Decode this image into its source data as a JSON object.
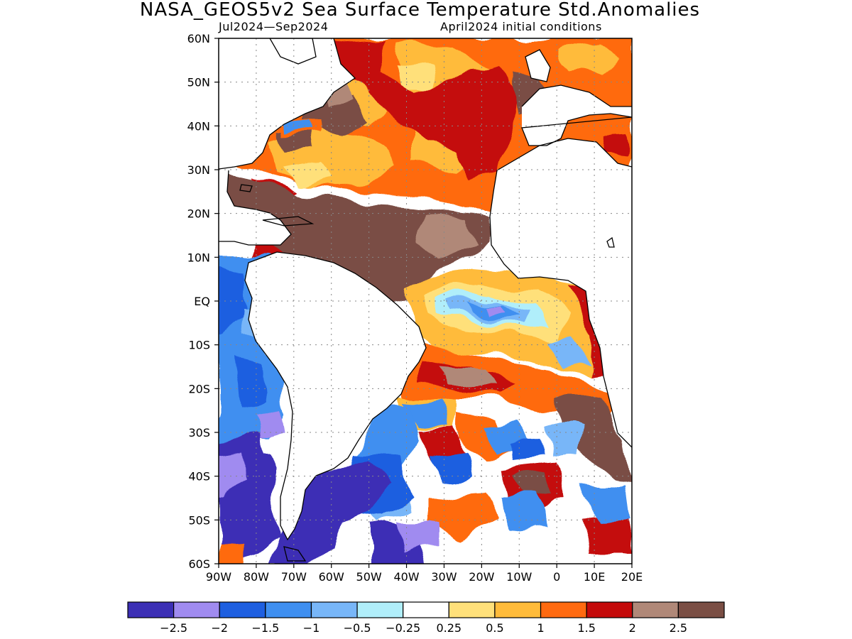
{
  "title": "NASA_GEOS5v2 Sea Surface Temperature Std.Anomalies",
  "subtitle_left": "Jul2024—Sep2024",
  "subtitle_right": "April2024 initial conditions",
  "map": {
    "projection": "lat-lon",
    "lon_range": [
      -90,
      20
    ],
    "lat_range": [
      -60,
      60
    ],
    "gridlines": "dotted",
    "lat_ticks": [
      "60N",
      "50N",
      "40N",
      "30N",
      "20N",
      "10N",
      "EQ",
      "10S",
      "20S",
      "30S",
      "40S",
      "50S",
      "60S"
    ],
    "lon_ticks": [
      "90W",
      "80W",
      "70W",
      "60W",
      "50W",
      "40W",
      "30W",
      "20W",
      "10W",
      "0",
      "10E",
      "20E"
    ],
    "variable": "SST standardized anomaly"
  },
  "colorbar": {
    "colors": [
      "#3c2fb5",
      "#a08bf0",
      "#1e5fe0",
      "#3f8ff0",
      "#78b6f8",
      "#b0eefa",
      "#ffffff",
      "#ffe07a",
      "#ffbb3a",
      "#ff6a10",
      "#c40a0a",
      "#b08878",
      "#7a4e44"
    ],
    "labels": [
      "−2.5",
      "−2",
      "−1.5",
      "−1",
      "−0.5",
      "−0.25",
      "0.25",
      "0.5",
      "1",
      "1.5",
      "2",
      "2.5"
    ]
  }
}
